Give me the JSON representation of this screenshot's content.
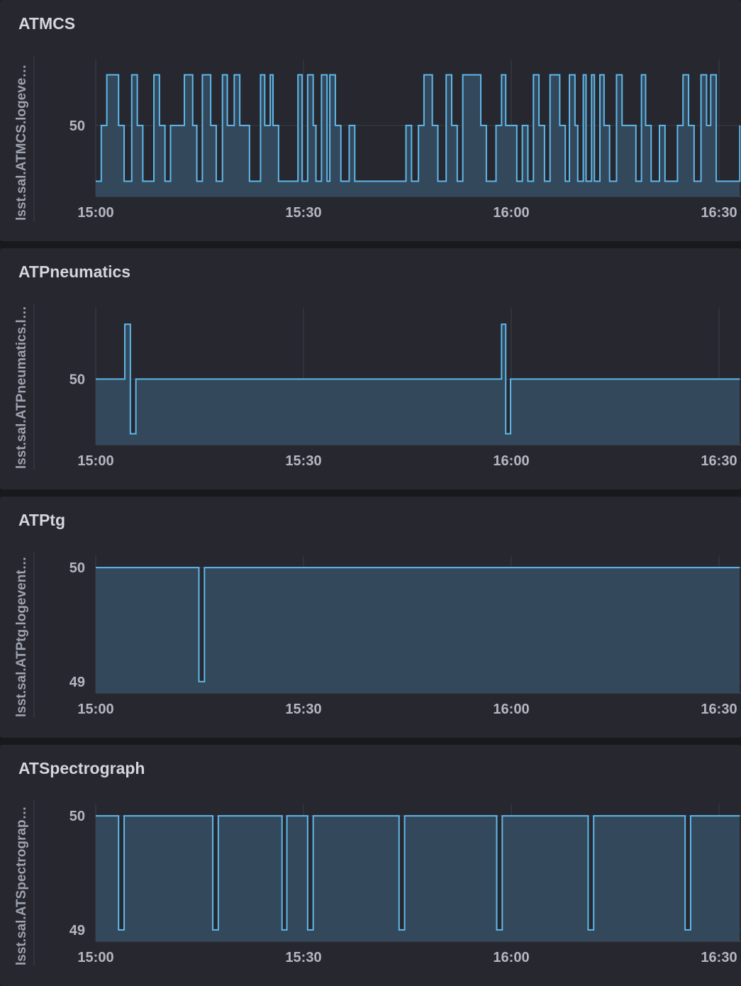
{
  "theme": {
    "line_color": "#5fb8ea",
    "fill_color": "#33485a",
    "grid_color": "#3b3f4a",
    "axis_text_color": "#b4b7bf"
  },
  "panels": [
    {
      "title": "ATMCS",
      "ylabel": "lsst.sal.ATMCS.logevent_heartbeat",
      "chart_data": {
        "type": "area",
        "xlabel": "",
        "ylabel": "lsst.sal.ATMCS.logevent_heartbeat",
        "x_ticks": [
          "15:00",
          "15:30",
          "16:00",
          "16:30"
        ],
        "y_ticks": [
          "50"
        ],
        "x_range_minutes": [
          0,
          93
        ],
        "y_range": [
          48.6,
          51.3
        ],
        "steps_time_minutes": [
          0,
          0.8,
          1.6,
          3.3,
          4.1,
          5.2,
          6.0,
          6.8,
          8.4,
          9.2,
          10.0,
          10.8,
          12.8,
          14.0,
          14.6,
          15.4,
          16.6,
          17.4,
          18.3,
          19.0,
          20.0,
          20.8,
          22.2,
          23.8,
          24.4,
          25.2,
          25.6,
          26.4,
          29.2,
          29.8,
          30.6,
          31.4,
          31.8,
          32.6,
          33.4,
          33.8,
          34.6,
          35.4,
          36.6,
          37.4,
          44.8,
          45.6,
          46.6,
          47.4,
          48.6,
          49.4,
          50.6,
          51.4,
          52.2,
          53.0,
          55.6,
          56.4,
          57.8,
          58.6,
          59.2,
          60.8,
          61.6,
          62.4,
          63.2,
          64.0,
          64.8,
          65.6,
          67.0,
          67.8,
          68.4,
          69.2,
          69.6,
          70.4,
          70.8,
          71.6,
          72.0,
          72.8,
          73.4,
          74.2,
          75.2,
          76.0,
          78.0,
          78.8,
          79.4,
          80.2,
          81.4,
          82.2,
          84.0,
          84.8,
          85.6,
          86.4,
          87.4,
          88.2,
          88.8,
          89.6,
          93
        ],
        "steps_value": [
          48.9,
          50,
          51.0,
          50,
          48.9,
          51.0,
          50,
          48.9,
          51.0,
          50,
          48.9,
          50,
          51.0,
          50,
          48.9,
          51.0,
          50,
          48.9,
          51.0,
          50,
          51.0,
          50,
          48.9,
          51.0,
          50,
          51.0,
          50,
          48.9,
          51.0,
          48.9,
          51.0,
          50,
          48.9,
          51.0,
          48.9,
          51.0,
          50,
          48.9,
          50,
          48.9,
          50,
          48.9,
          50,
          51.0,
          50,
          48.9,
          51.0,
          50,
          48.9,
          51.0,
          50,
          48.9,
          50,
          51.0,
          50,
          48.9,
          50,
          48.9,
          51.0,
          50,
          48.9,
          51.0,
          50,
          48.9,
          51.0,
          50,
          48.9,
          51.0,
          48.9,
          51.0,
          48.9,
          51.0,
          50,
          48.9,
          51.0,
          50,
          48.9,
          51.0,
          50,
          48.9,
          50,
          48.9,
          50,
          51.0,
          50,
          48.9,
          51.0,
          50,
          51.0,
          48.9,
          50
        ]
      }
    },
    {
      "title": "ATPneumatics",
      "ylabel": "lsst.sal.ATPneumatics.logevent_heartbeat",
      "chart_data": {
        "type": "area",
        "xlabel": "",
        "ylabel": "lsst.sal.ATPneumatics.logevent_heartbeat",
        "x_ticks": [
          "15:00",
          "15:30",
          "16:00",
          "16:30"
        ],
        "y_ticks": [
          "50"
        ],
        "x_range_minutes": [
          0,
          93
        ],
        "y_range": [
          48.8,
          51.3
        ],
        "steps_time_minutes": [
          0,
          4.2,
          5.0,
          5.8,
          58.6,
          59.2,
          59.9,
          93
        ],
        "steps_value": [
          50,
          51.0,
          49.0,
          50,
          51.0,
          49.0,
          50,
          50
        ]
      }
    },
    {
      "title": "ATPtg",
      "ylabel": "lsst.sal.ATPtg.logevent_heartbeat",
      "chart_data": {
        "type": "area",
        "xlabel": "",
        "ylabel": "lsst.sal.ATPtg.logevent_heartbeat",
        "x_ticks": [
          "15:00",
          "15:30",
          "16:00",
          "16:30"
        ],
        "y_ticks": [
          "50",
          "49"
        ],
        "x_range_minutes": [
          0,
          93
        ],
        "y_range": [
          48.9,
          50.1
        ],
        "steps_time_minutes": [
          0,
          14.9,
          15.7,
          93
        ],
        "steps_value": [
          50,
          49,
          50,
          50
        ]
      }
    },
    {
      "title": "ATSpectrograph",
      "ylabel": "lsst.sal.ATSpectrograph.logevent_heartbeat",
      "chart_data": {
        "type": "area",
        "xlabel": "",
        "ylabel": "lsst.sal.ATSpectrograph.logevent_heartbeat",
        "x_ticks": [
          "15:00",
          "15:30",
          "16:00",
          "16:30"
        ],
        "y_ticks": [
          "50",
          "49"
        ],
        "x_range_minutes": [
          0,
          93
        ],
        "y_range": [
          48.9,
          50.1
        ],
        "steps_time_minutes": [
          0,
          3.3,
          4.1,
          16.9,
          17.7,
          26.9,
          27.6,
          30.6,
          31.4,
          43.8,
          44.6,
          57.9,
          58.7,
          71.1,
          71.9,
          85.1,
          85.9,
          93
        ],
        "steps_value": [
          50,
          49,
          50,
          49,
          50,
          49,
          50,
          49,
          50,
          49,
          50,
          49,
          50,
          49,
          50,
          49,
          50,
          50
        ]
      }
    }
  ]
}
